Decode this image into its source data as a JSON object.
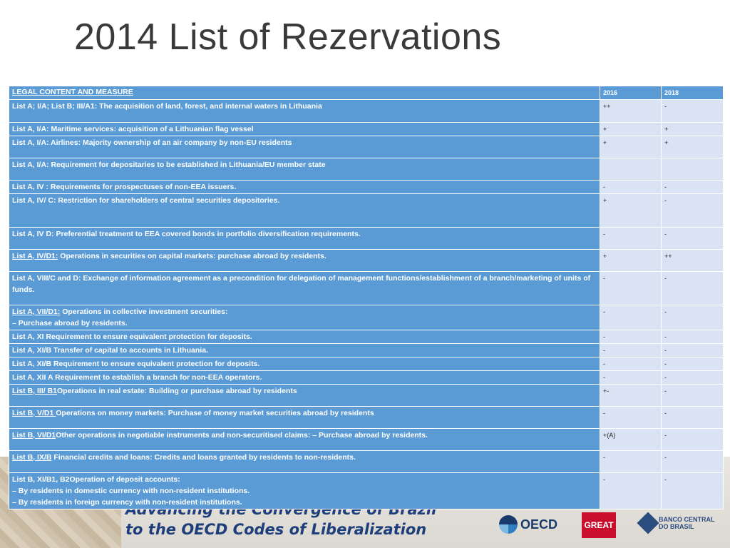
{
  "title": "2014 List of Rezervations",
  "table": {
    "headers": [
      "LEGAL CONTENT AND MEASURE",
      "2016",
      "2018"
    ],
    "rows": [
      {
        "ref": "",
        "text": "List A; I/A; List B; III/A1: The acquisition of land, forest, and internal waters in Lithuania",
        "v2016": "++",
        "v2018": "-"
      },
      {
        "ref": "",
        "text": "List A, I/A: Maritime services: acquisition of a Lithuanian flag vessel",
        "v2016": "+",
        "v2018": "+"
      },
      {
        "ref": "",
        "text": "List A, I/A: Airlines: Majority ownership of an air company by non-EU residents",
        "v2016": "+",
        "v2018": "+"
      },
      {
        "ref": "",
        "text": "List A, I/A: Requirement for depositaries to be established in Lithuania/EU member state",
        "v2016": "",
        "v2018": ""
      },
      {
        "ref": "",
        "text": "List A, IV : Requirements for prospectuses of non-EEA issuers.",
        "v2016": "-",
        "v2018": "-"
      },
      {
        "ref": "",
        "text": "List A, IV/ C: Restriction for shareholders of central securities depositories.",
        "v2016": "+",
        "v2018": "-"
      },
      {
        "ref": "",
        "text": "List A, IV D: Preferential treatment to EEA covered bonds in portfolio diversification requirements.",
        "v2016": "-",
        "v2018": "-"
      },
      {
        "ref": "List A, IV/D1:",
        "text": " Operations in securities on capital markets: purchase abroad by residents.",
        "v2016": "+",
        "v2018": "++"
      },
      {
        "ref": "",
        "text": "List A, VIII/C and D: Exchange of information agreement as a precondition for delegation of management functions/establishment of a branch/marketing of units of funds.",
        "v2016": "-",
        "v2018": "-"
      },
      {
        "ref": "List A, VII/D1:",
        "text": " Operations in collective investment securities:",
        "text2": "– Purchase abroad by residents.",
        "v2016": "-",
        "v2018": "-"
      },
      {
        "ref": "",
        "text": "List A, XI Requirement to ensure equivalent protection for deposits.",
        "v2016": "-",
        "v2018": "-"
      },
      {
        "ref": "",
        "text": "List A, XI/B Transfer of capital to accounts in Lithuania.",
        "v2016": "-",
        "v2018": "-"
      },
      {
        "ref": "",
        "text": "List A, XI/B Requirement to ensure equivalent protection for deposits.",
        "v2016": "-",
        "v2018": "-"
      },
      {
        "ref": "",
        "text": "List A, XII A Requirement to establish a branch for non-EEA operators.",
        "v2016": "-",
        "v2018": "-"
      },
      {
        "ref": "List B, III/ B1",
        "text": "Operations in real estate: Building or purchase abroad by residents",
        "v2016": "+-",
        "v2018": "-"
      },
      {
        "ref": "List B, V/D1 ",
        "text": "Operations on money markets: Purchase of money market securities abroad by residents",
        "v2016": "-",
        "v2018": "-"
      },
      {
        "ref": "List B, VI/D1",
        "text": "Other operations in negotiable instruments and non-securitised claims: – Purchase abroad by residents.",
        "v2016": "+(A)",
        "v2018": "-"
      },
      {
        "ref": "List B, IX/B",
        "text": " Financial credits and loans:  Credits and loans granted by residents to non-residents.",
        "v2016": "-",
        "v2018": "-"
      },
      {
        "ref": "",
        "text": "List B, XI/B1, B2Operation of deposit accounts:",
        "text2": "– By residents in domestic currency with non-resident institutions.",
        "text3": "– By residents in foreign currency with non-resident institutions.",
        "v2016": "-",
        "v2018": "-"
      }
    ]
  },
  "banner": {
    "line1": "Advancing the Convergence of Brazil",
    "line2": "to the OECD Codes of Liberalization",
    "logos": {
      "oecd": "OECD",
      "great": "GREAT",
      "bcb_line1": "BANCO CENTRAL",
      "bcb_line2": "DO BRASIL"
    }
  }
}
